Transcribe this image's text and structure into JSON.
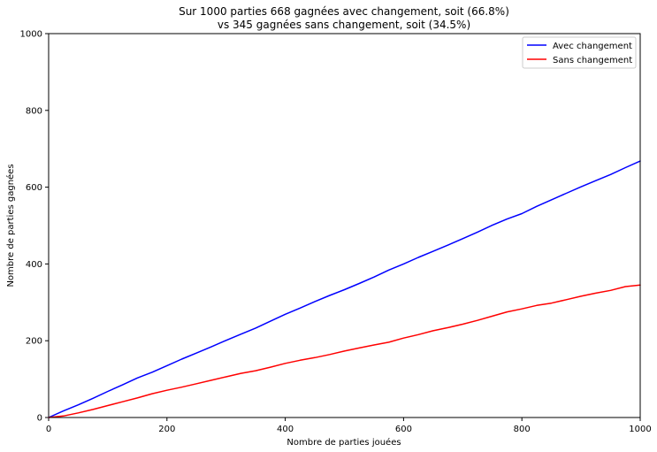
{
  "chart_data": {
    "type": "line",
    "title": "Sur 1000 parties 668 gagnées avec changement, soit (66.8%)",
    "subtitle": "vs 345 gagnées sans changement, soit (34.5%)",
    "xlabel": "Nombre de parties jouées",
    "ylabel": "Nombre de parties gagnées",
    "xlim": [
      0,
      1000
    ],
    "ylim": [
      0,
      1000
    ],
    "xticks": [
      "0",
      "200",
      "400",
      "600",
      "800",
      "1000"
    ],
    "yticks": [
      "0",
      "200",
      "400",
      "600",
      "800",
      "1000"
    ],
    "grid": false,
    "legend_position": "top-right",
    "series": [
      {
        "name": "Avec changement",
        "color": "#0000ff",
        "x": [
          0,
          25,
          50,
          75,
          100,
          125,
          150,
          175,
          200,
          225,
          250,
          275,
          300,
          325,
          350,
          375,
          400,
          425,
          450,
          475,
          500,
          525,
          550,
          575,
          600,
          625,
          650,
          675,
          700,
          725,
          750,
          775,
          800,
          825,
          850,
          875,
          900,
          925,
          950,
          975,
          1000
        ],
        "y": [
          0,
          17,
          33,
          50,
          68,
          85,
          103,
          118,
          135,
          152,
          168,
          184,
          201,
          217,
          233,
          251,
          269,
          285,
          302,
          318,
          333,
          349,
          366,
          384,
          400,
          417,
          433,
          449,
          466,
          483,
          501,
          517,
          531,
          550,
          567,
          584,
          601,
          617,
          633,
          651,
          668
        ]
      },
      {
        "name": "Sans changement",
        "color": "#ff0000",
        "x": [
          0,
          25,
          50,
          75,
          100,
          125,
          150,
          175,
          200,
          225,
          250,
          275,
          300,
          325,
          350,
          375,
          400,
          425,
          450,
          475,
          500,
          525,
          550,
          575,
          600,
          625,
          650,
          675,
          700,
          725,
          750,
          775,
          800,
          825,
          850,
          875,
          900,
          925,
          950,
          975,
          1000
        ],
        "y": [
          0,
          4,
          12,
          21,
          31,
          41,
          51,
          62,
          71,
          79,
          88,
          97,
          106,
          115,
          122,
          131,
          141,
          149,
          156,
          164,
          173,
          181,
          189,
          196,
          207,
          216,
          226,
          234,
          243,
          253,
          264,
          275,
          283,
          292,
          298,
          307,
          316,
          324,
          331,
          341,
          345
        ]
      }
    ]
  }
}
